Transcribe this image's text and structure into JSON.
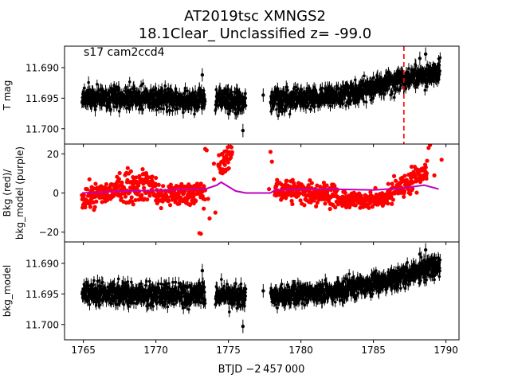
{
  "figure": {
    "title_line1": "AT2019tsc  XMNGS2",
    "title_line2": "18.1Clear_ Unclassified z= -99.0",
    "annotation": "s17 cam2ccd4",
    "xlabel": "BTJD −2 457 000",
    "event_line_x": 1787.1,
    "event_line_color": "#ff0000"
  },
  "chart_data": [
    {
      "type": "scatter",
      "name": "top",
      "ylabel": "T mag",
      "ylim": [
        11.7025,
        11.6865
      ],
      "yticks": [
        11.69,
        11.695,
        11.7
      ],
      "ytick_labels": [
        "11.690",
        "11.695",
        "11.700"
      ],
      "xlim": [
        1763.7,
        1790.9
      ],
      "xticks": [
        1765,
        1770,
        1775,
        1780,
        1785,
        1790
      ],
      "xtick_labels": [
        "",
        "",
        "",
        "",
        "",
        ""
      ],
      "color": "#000000",
      "segments": [
        {
          "x0": 1764.9,
          "x1": 1773.4,
          "mean": [
            11.6948,
            11.6952
          ],
          "scatter": 0.0015
        },
        {
          "x0": 1774.1,
          "x1": 1776.2,
          "mean": [
            11.6952,
            11.6955
          ],
          "scatter": 0.0016
        },
        {
          "x0": 1777.9,
          "x1": 1783.0,
          "mean": [
            11.6955,
            11.6945
          ],
          "scatter": 0.0014
        },
        {
          "x0": 1783.0,
          "x1": 1789.6,
          "mean": [
            11.6945,
            11.6905
          ],
          "scatter": 0.0014
        }
      ],
      "outliers": [
        [
          1773.0,
          11.6935
        ],
        [
          1773.2,
          11.6912
        ],
        [
          1776.0,
          11.7003
        ],
        [
          1777.4,
          11.6945
        ],
        [
          1788.2,
          11.6885
        ],
        [
          1788.6,
          11.6878
        ],
        [
          1789.2,
          11.6905
        ],
        [
          1789.5,
          11.6895
        ],
        [
          1785.2,
          11.6921
        ]
      ]
    },
    {
      "type": "scatter",
      "name": "middle",
      "ylabel": "Bkg (red)/\nbkg_model (purple)",
      "ylim": [
        -25,
        25
      ],
      "yticks": [
        -20,
        0,
        20
      ],
      "ytick_labels": [
        "−20",
        "0",
        "20"
      ],
      "xlim": [
        1763.7,
        1790.9
      ],
      "xticks": [
        1765,
        1770,
        1775,
        1780,
        1785,
        1790
      ],
      "xtick_labels": [
        "",
        "",
        "",
        "",
        "",
        ""
      ],
      "bkg_color": "#ff0000",
      "model_color": "#bf00bf",
      "bkg_segments": [
        {
          "x0": 1764.9,
          "x1": 1767.5,
          "level": [
            -3,
            2
          ],
          "scatter": 3
        },
        {
          "x0": 1767.5,
          "x1": 1770.0,
          "level": [
            3,
            4
          ],
          "scatter": 4
        },
        {
          "x0": 1770.0,
          "x1": 1773.4,
          "level": [
            -2,
            1
          ],
          "scatter": 3
        },
        {
          "x0": 1774.3,
          "x1": 1775.3,
          "level": [
            12,
            22
          ],
          "scatter": 3
        },
        {
          "x0": 1778.2,
          "x1": 1782.5,
          "level": [
            2,
            -1
          ],
          "scatter": 3
        },
        {
          "x0": 1782.5,
          "x1": 1786.0,
          "level": [
            -4,
            -3
          ],
          "scatter": 2
        },
        {
          "x0": 1786.0,
          "x1": 1788.7,
          "level": [
            -1,
            12
          ],
          "scatter": 3
        }
      ],
      "bkg_outliers": [
        [
          1773.0,
          -20.5
        ],
        [
          1773.1,
          -20.8
        ],
        [
          1773.4,
          22.5
        ],
        [
          1773.5,
          21.8
        ],
        [
          1773.3,
          -8
        ],
        [
          1773.6,
          -3
        ],
        [
          1773.7,
          -13
        ],
        [
          1774.0,
          7
        ],
        [
          1774.0,
          15
        ],
        [
          1774.1,
          -10
        ],
        [
          1777.9,
          21
        ],
        [
          1778.0,
          16
        ],
        [
          1777.8,
          2
        ],
        [
          1788.8,
          23
        ],
        [
          1788.9,
          24.5
        ],
        [
          1789.2,
          9
        ],
        [
          1789.7,
          17
        ]
      ],
      "model": [
        [
          1764.9,
          0.0
        ],
        [
          1768.0,
          1.0
        ],
        [
          1771.0,
          1.5
        ],
        [
          1773.4,
          2.0
        ],
        [
          1774.2,
          4.0
        ],
        [
          1774.5,
          5.5
        ],
        [
          1775.5,
          1.0
        ],
        [
          1776.2,
          0.0
        ],
        [
          1777.9,
          0.0
        ],
        [
          1778.2,
          1.5
        ],
        [
          1782.0,
          2.0
        ],
        [
          1785.0,
          1.5
        ],
        [
          1787.0,
          2.5
        ],
        [
          1788.5,
          4.0
        ],
        [
          1789.5,
          2.0
        ]
      ]
    },
    {
      "type": "scatter",
      "name": "bottom",
      "ylabel": "bkg_model",
      "ylim": [
        11.7025,
        11.6865
      ],
      "yticks": [
        11.69,
        11.695,
        11.7
      ],
      "ytick_labels": [
        "11.690",
        "11.695",
        "11.700"
      ],
      "xlim": [
        1763.7,
        1790.9
      ],
      "xticks": [
        1765,
        1770,
        1775,
        1780,
        1785,
        1790
      ],
      "xtick_labels": [
        "1765",
        "1770",
        "1775",
        "1780",
        "1785",
        "1790"
      ],
      "color": "#000000",
      "segments": [
        {
          "x0": 1764.9,
          "x1": 1773.4,
          "mean": [
            11.6948,
            11.6952
          ],
          "scatter": 0.0015
        },
        {
          "x0": 1774.1,
          "x1": 1776.2,
          "mean": [
            11.6952,
            11.6955
          ],
          "scatter": 0.0016
        },
        {
          "x0": 1777.9,
          "x1": 1783.0,
          "mean": [
            11.6955,
            11.6945
          ],
          "scatter": 0.0014
        },
        {
          "x0": 1783.0,
          "x1": 1789.6,
          "mean": [
            11.6945,
            11.6905
          ],
          "scatter": 0.0014
        }
      ],
      "outliers": [
        [
          1773.0,
          11.6935
        ],
        [
          1773.2,
          11.6912
        ],
        [
          1776.0,
          11.7003
        ],
        [
          1777.4,
          11.6945
        ],
        [
          1788.2,
          11.6885
        ],
        [
          1788.6,
          11.6878
        ],
        [
          1789.2,
          11.6905
        ],
        [
          1789.5,
          11.6895
        ],
        [
          1785.2,
          11.6921
        ]
      ]
    }
  ]
}
